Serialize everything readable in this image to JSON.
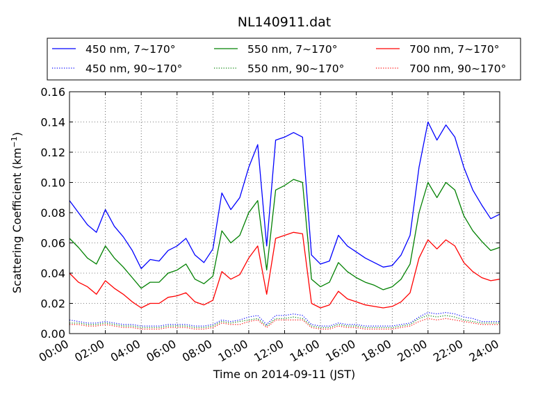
{
  "chart_data": {
    "type": "line",
    "title": "NL140911.dat",
    "xlabel": "Time on 2014-09-11 (JST)",
    "ylabel": "Scattering Coefficient (km",
    "ylabel_sup": "−1",
    "ylabel_end": ")",
    "x_unit": "hours",
    "xlim": [
      0,
      24
    ],
    "ylim": [
      0,
      0.16
    ],
    "x_tick_labels": [
      "00:00",
      "02:00",
      "04:00",
      "06:00",
      "08:00",
      "10:00",
      "12:00",
      "14:00",
      "16:00",
      "18:00",
      "20:00",
      "22:00",
      "24:00"
    ],
    "y_tick_labels": [
      "0.00",
      "0.02",
      "0.04",
      "0.06",
      "0.08",
      "0.10",
      "0.12",
      "0.14",
      "0.16"
    ],
    "grid": true,
    "legend_position": "top",
    "x": [
      0,
      0.5,
      1,
      1.5,
      2,
      2.5,
      3,
      3.5,
      4,
      4.5,
      5,
      5.5,
      6,
      6.5,
      7,
      7.5,
      8,
      8.5,
      9,
      9.5,
      10,
      10.5,
      11,
      11.5,
      12,
      12.5,
      13,
      13.5,
      14,
      14.5,
      15,
      15.5,
      16,
      16.5,
      17,
      17.5,
      18,
      18.5,
      19,
      19.5,
      20,
      20.5,
      21,
      21.5,
      22,
      22.5,
      23,
      23.5,
      24
    ],
    "series": [
      {
        "name": "450 nm, 7∼170°",
        "color": "#0000ff",
        "style": "solid",
        "values": [
          0.088,
          0.08,
          0.072,
          0.067,
          0.082,
          0.071,
          0.064,
          0.055,
          0.043,
          0.049,
          0.048,
          0.055,
          0.058,
          0.063,
          0.052,
          0.047,
          0.056,
          0.093,
          0.082,
          0.09,
          0.11,
          0.125,
          0.058,
          0.128,
          0.13,
          0.133,
          0.13,
          0.052,
          0.046,
          0.048,
          0.065,
          0.058,
          0.054,
          0.05,
          0.047,
          0.044,
          0.045,
          0.052,
          0.065,
          0.11,
          0.14,
          0.128,
          0.138,
          0.13,
          0.11,
          0.095,
          0.085,
          0.076,
          0.079
        ]
      },
      {
        "name": "550 nm, 7∼170°",
        "color": "#008000",
        "style": "solid",
        "values": [
          0.063,
          0.057,
          0.05,
          0.046,
          0.058,
          0.05,
          0.044,
          0.037,
          0.03,
          0.034,
          0.034,
          0.04,
          0.042,
          0.046,
          0.036,
          0.033,
          0.038,
          0.068,
          0.06,
          0.065,
          0.08,
          0.088,
          0.042,
          0.095,
          0.098,
          0.102,
          0.1,
          0.036,
          0.031,
          0.034,
          0.047,
          0.041,
          0.037,
          0.034,
          0.032,
          0.029,
          0.031,
          0.036,
          0.046,
          0.08,
          0.1,
          0.09,
          0.1,
          0.095,
          0.078,
          0.068,
          0.061,
          0.055,
          0.057
        ]
      },
      {
        "name": "700 nm, 7∼170°",
        "color": "#ff0000",
        "style": "solid",
        "values": [
          0.04,
          0.034,
          0.031,
          0.026,
          0.035,
          0.03,
          0.026,
          0.021,
          0.017,
          0.02,
          0.02,
          0.024,
          0.025,
          0.027,
          0.021,
          0.019,
          0.022,
          0.041,
          0.036,
          0.039,
          0.05,
          0.058,
          0.026,
          0.063,
          0.065,
          0.067,
          0.066,
          0.02,
          0.017,
          0.019,
          0.028,
          0.023,
          0.021,
          0.019,
          0.018,
          0.017,
          0.018,
          0.021,
          0.027,
          0.05,
          0.062,
          0.056,
          0.062,
          0.058,
          0.047,
          0.041,
          0.037,
          0.035,
          0.036
        ]
      },
      {
        "name": "450 nm, 90∼170°",
        "color": "#0000ff",
        "style": "dotted",
        "values": [
          0.009,
          0.008,
          0.007,
          0.007,
          0.008,
          0.007,
          0.006,
          0.006,
          0.005,
          0.005,
          0.005,
          0.006,
          0.006,
          0.006,
          0.005,
          0.005,
          0.006,
          0.009,
          0.008,
          0.009,
          0.011,
          0.012,
          0.006,
          0.012,
          0.012,
          0.013,
          0.012,
          0.006,
          0.005,
          0.005,
          0.007,
          0.006,
          0.006,
          0.005,
          0.005,
          0.005,
          0.005,
          0.006,
          0.007,
          0.011,
          0.014,
          0.013,
          0.014,
          0.013,
          0.011,
          0.01,
          0.008,
          0.008,
          0.008
        ]
      },
      {
        "name": "550 nm, 90∼170°",
        "color": "#008000",
        "style": "dotted",
        "values": [
          0.007,
          0.007,
          0.006,
          0.006,
          0.007,
          0.006,
          0.005,
          0.005,
          0.004,
          0.004,
          0.004,
          0.005,
          0.005,
          0.005,
          0.004,
          0.004,
          0.005,
          0.008,
          0.007,
          0.008,
          0.009,
          0.01,
          0.005,
          0.01,
          0.01,
          0.011,
          0.01,
          0.005,
          0.004,
          0.004,
          0.006,
          0.005,
          0.005,
          0.004,
          0.004,
          0.004,
          0.004,
          0.005,
          0.006,
          0.01,
          0.012,
          0.011,
          0.012,
          0.011,
          0.009,
          0.008,
          0.007,
          0.007,
          0.007
        ]
      },
      {
        "name": "700 nm, 90∼170°",
        "color": "#ff0000",
        "style": "dotted",
        "values": [
          0.006,
          0.006,
          0.005,
          0.005,
          0.006,
          0.005,
          0.004,
          0.004,
          0.003,
          0.003,
          0.003,
          0.004,
          0.004,
          0.004,
          0.003,
          0.003,
          0.004,
          0.007,
          0.006,
          0.006,
          0.008,
          0.009,
          0.004,
          0.009,
          0.009,
          0.009,
          0.009,
          0.004,
          0.003,
          0.003,
          0.005,
          0.004,
          0.004,
          0.003,
          0.003,
          0.003,
          0.003,
          0.004,
          0.005,
          0.008,
          0.01,
          0.009,
          0.01,
          0.009,
          0.008,
          0.007,
          0.006,
          0.006,
          0.006
        ]
      }
    ]
  }
}
